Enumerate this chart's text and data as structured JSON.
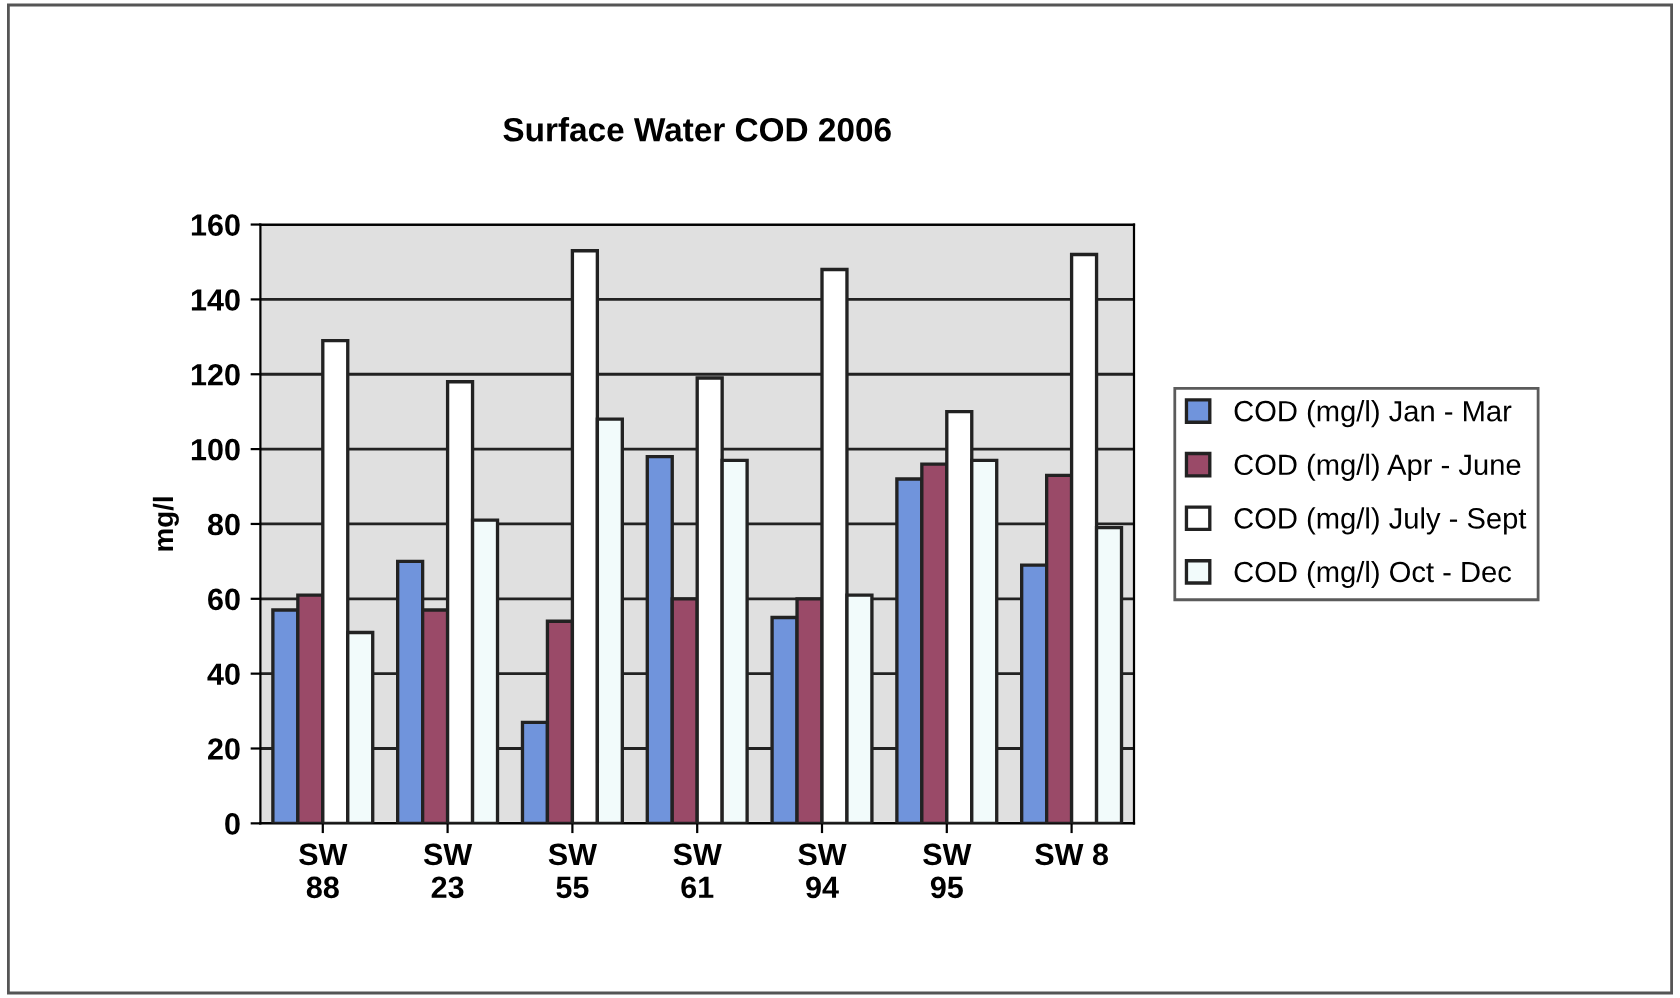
{
  "chart_data": {
    "type": "bar",
    "title": "Surface Water COD 2006",
    "ylabel": "mg/l",
    "categories": [
      "SW\n88",
      "SW\n23",
      "SW\n55",
      "SW\n61",
      "SW\n94",
      "SW\n95",
      "SW 8"
    ],
    "series": [
      {
        "name": "COD (mg/l) Jan - Mar",
        "color": "#7094dc",
        "values": [
          57,
          70,
          27,
          98,
          55,
          92,
          69
        ]
      },
      {
        "name": "COD (mg/l) Apr - June",
        "color": "#9a4a68",
        "values": [
          61,
          57,
          54,
          60,
          60,
          96,
          93
        ]
      },
      {
        "name": "COD (mg/l) July - Sept",
        "color": "#ffffff",
        "values": [
          129,
          118,
          153,
          119,
          148,
          110,
          152
        ]
      },
      {
        "name": "COD (mg/l) Oct - Dec",
        "color": "#f2fbfb",
        "values": [
          51,
          81,
          108,
          97,
          61,
          97,
          79
        ]
      }
    ],
    "ylim": [
      0,
      160
    ],
    "yticks": [
      0,
      20,
      40,
      60,
      80,
      100,
      120,
      140,
      160
    ],
    "grid": "y",
    "legend": "right"
  }
}
